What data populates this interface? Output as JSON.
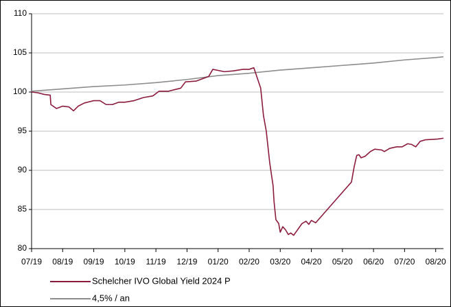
{
  "chart_data": {
    "type": "line",
    "xlim": [
      0,
      13.25
    ],
    "xticks": [
      {
        "value": 0,
        "label": "07/19"
      },
      {
        "value": 1,
        "label": "08/19"
      },
      {
        "value": 2,
        "label": "09/19"
      },
      {
        "value": 3,
        "label": "10/19"
      },
      {
        "value": 4,
        "label": "11/19"
      },
      {
        "value": 5,
        "label": "12/19"
      },
      {
        "value": 6,
        "label": "01/20"
      },
      {
        "value": 7,
        "label": "02/20"
      },
      {
        "value": 8,
        "label": "03/20"
      },
      {
        "value": 9,
        "label": "04/20"
      },
      {
        "value": 10,
        "label": "05/20"
      },
      {
        "value": 11,
        "label": "06/20"
      },
      {
        "value": 12,
        "label": "07/20"
      },
      {
        "value": 13,
        "label": "08/20"
      }
    ],
    "ylim": [
      80,
      110
    ],
    "yticks": [
      80,
      85,
      90,
      95,
      100,
      105,
      110
    ],
    "grid": true,
    "series": [
      {
        "name": "Schelcher IVO Global Yield 2024 P",
        "color": "#8b1a3c",
        "x": [
          0,
          0.2,
          0.4,
          0.6,
          0.62,
          0.8,
          1.0,
          1.2,
          1.35,
          1.5,
          1.7,
          2.0,
          2.2,
          2.4,
          2.6,
          2.8,
          3.0,
          3.3,
          3.6,
          3.9,
          4.1,
          4.4,
          4.6,
          4.8,
          4.95,
          5.3,
          5.5,
          5.7,
          5.83,
          6.2,
          6.5,
          6.8,
          7.0,
          7.15,
          7.37,
          7.46,
          7.55,
          7.66,
          7.77,
          7.8,
          7.86,
          7.95,
          8.0,
          8.08,
          8.17,
          8.26,
          8.34,
          8.43,
          8.52,
          8.7,
          8.83,
          8.92,
          9.0,
          9.14,
          10.29,
          10.38,
          10.46,
          10.53,
          10.6,
          10.73,
          10.9,
          11.04,
          11.26,
          11.35,
          11.52,
          11.74,
          11.92,
          12.1,
          12.23,
          12.36,
          12.5,
          12.67,
          13.07,
          13.25
        ],
        "values": [
          100.0,
          99.9,
          99.7,
          99.6,
          98.4,
          97.9,
          98.2,
          98.1,
          97.6,
          98.2,
          98.6,
          98.9,
          98.9,
          98.4,
          98.4,
          98.7,
          98.7,
          98.9,
          99.3,
          99.5,
          100.1,
          100.1,
          100.3,
          100.5,
          101.3,
          101.4,
          101.7,
          102.0,
          102.9,
          102.6,
          102.7,
          102.9,
          102.9,
          103.1,
          100.5,
          97.0,
          95.0,
          91.0,
          88.0,
          86.0,
          83.7,
          83.2,
          82.1,
          82.8,
          82.4,
          81.8,
          82.0,
          81.7,
          82.2,
          83.2,
          83.5,
          83.1,
          83.6,
          83.3,
          88.5,
          90.5,
          91.9,
          92.0,
          91.6,
          91.8,
          92.4,
          92.7,
          92.6,
          92.4,
          92.8,
          93.0,
          93.0,
          93.4,
          93.3,
          93.0,
          93.7,
          93.9,
          94.0,
          94.1
        ]
      },
      {
        "name": "4,5% / an",
        "color": "#8c8c8c",
        "x": [
          0,
          1,
          2,
          3,
          4,
          5,
          6,
          7,
          8,
          9,
          10,
          11,
          12,
          13,
          13.25
        ],
        "values": [
          100.1,
          100.4,
          100.7,
          100.9,
          101.2,
          101.6,
          102.1,
          102.4,
          102.8,
          103.1,
          103.4,
          103.7,
          104.1,
          104.4,
          104.5
        ]
      }
    ]
  }
}
